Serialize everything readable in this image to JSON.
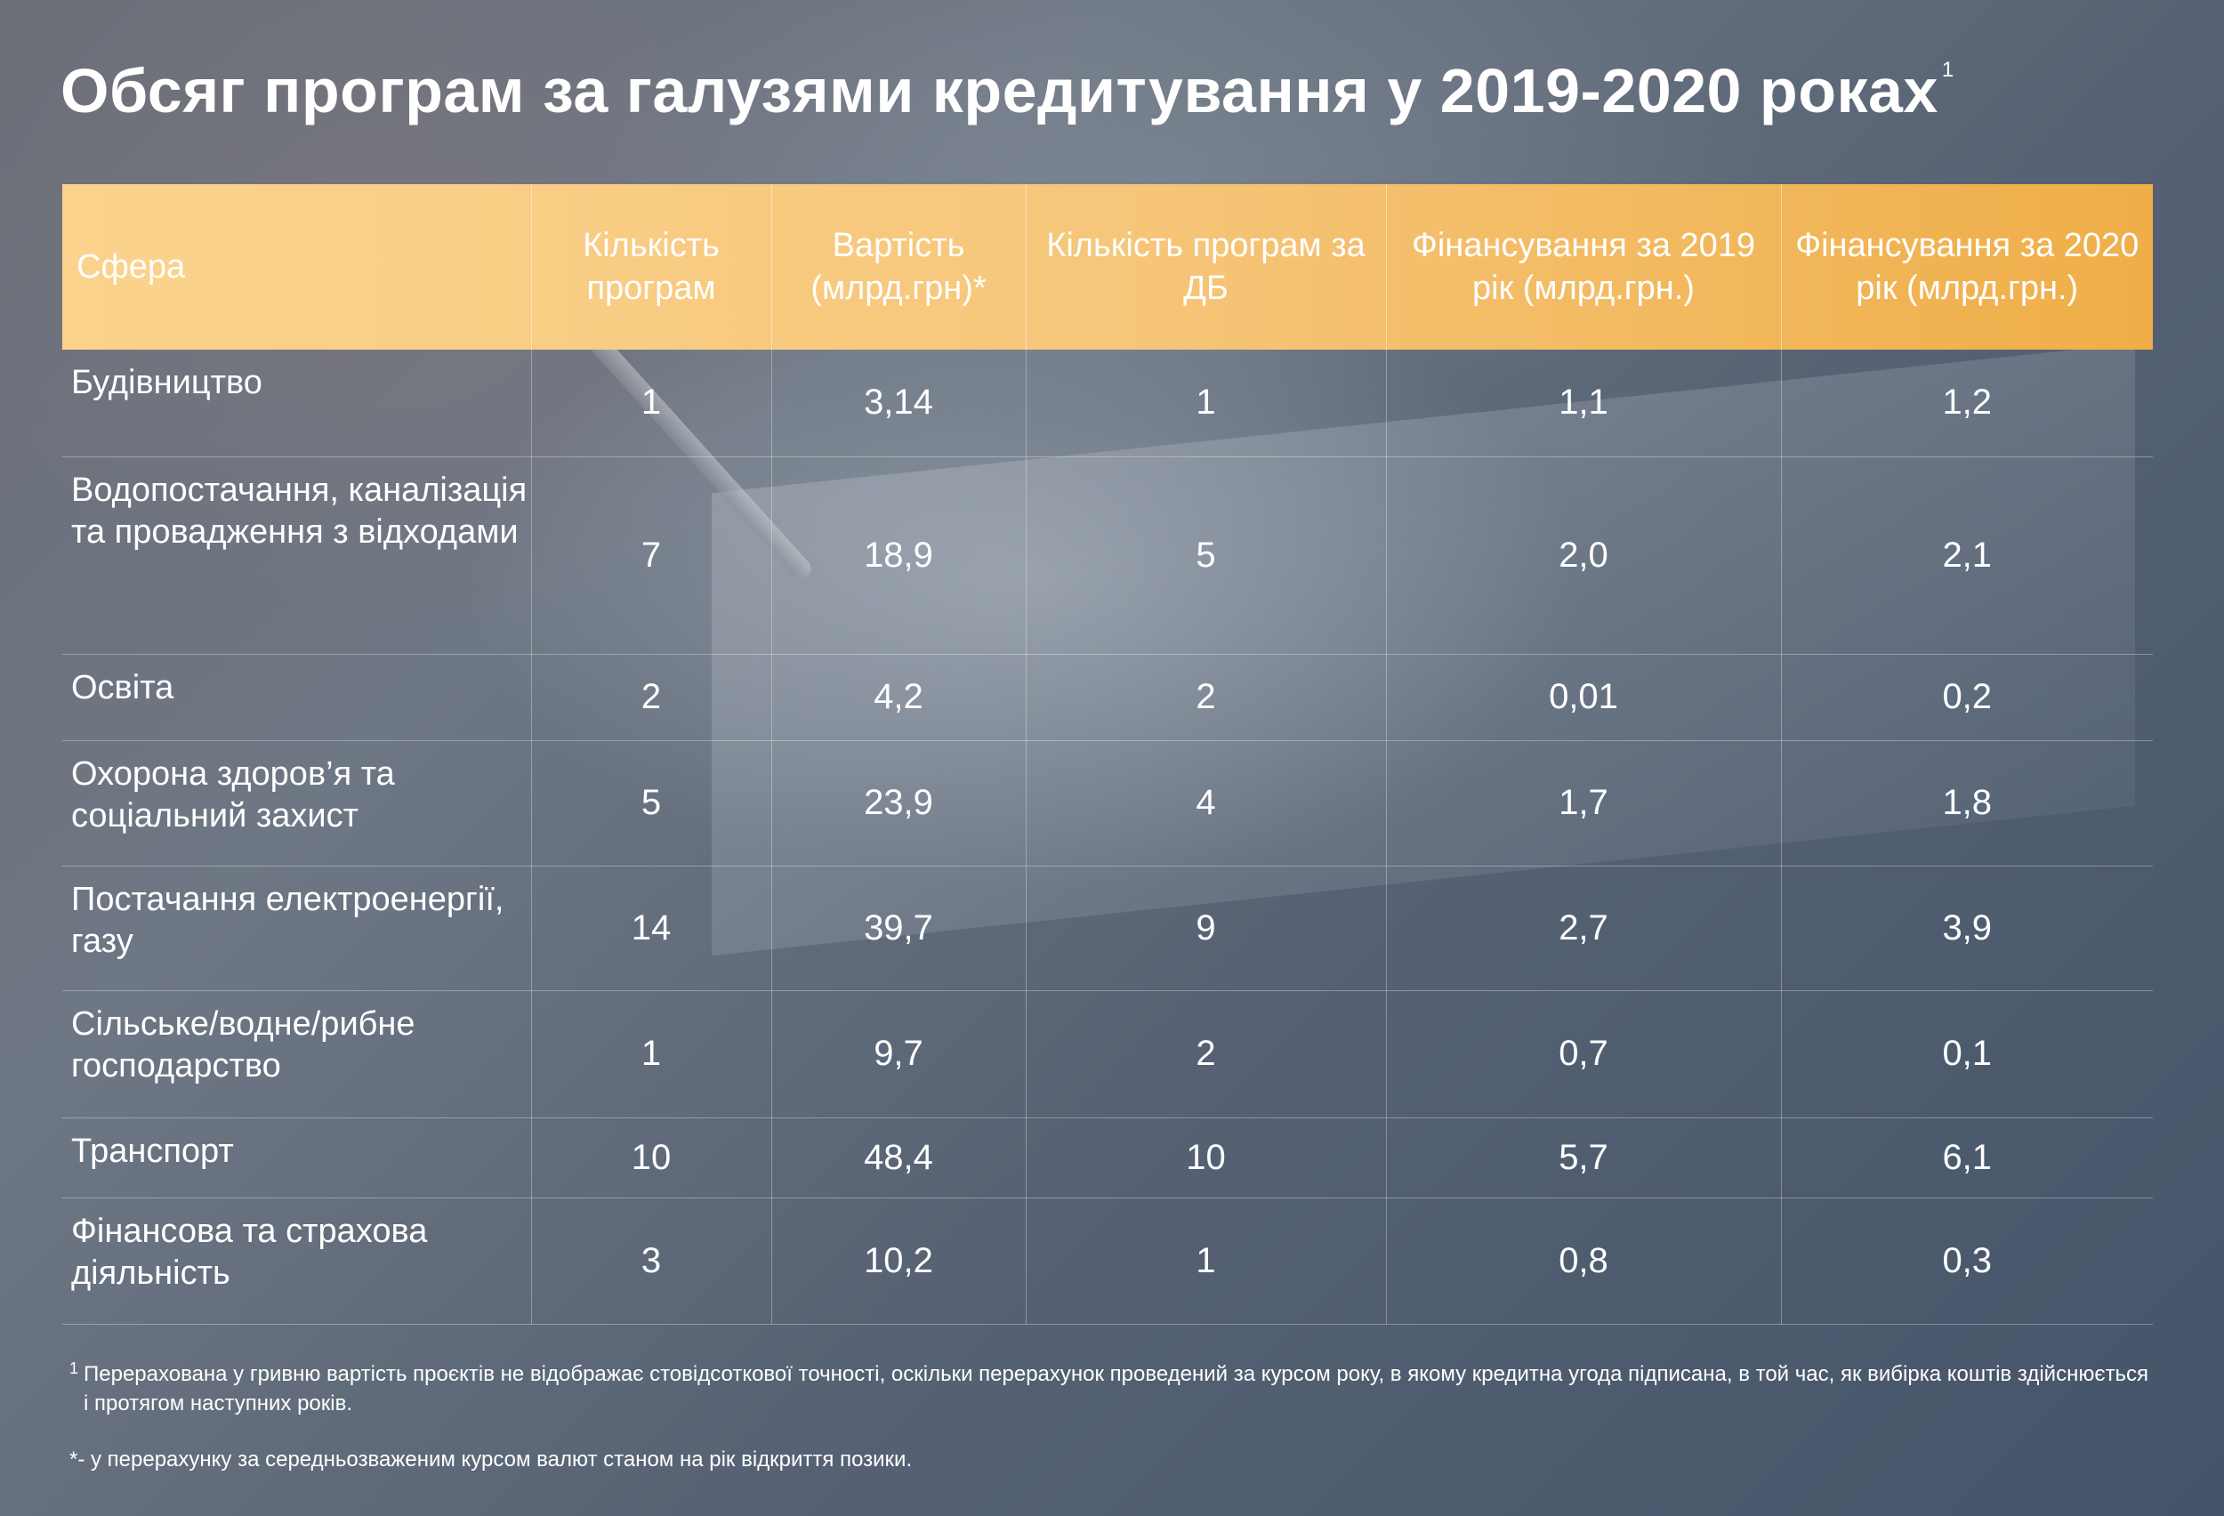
{
  "title": "Обсяг програм за галузями кредитування у 2019-2020 роках",
  "title_footnote_mark": "1",
  "table": {
    "headers": [
      "Сфера",
      "Кількість програм",
      "Вартість (млрд.грн)*",
      "Кількість програм за ДБ",
      "Фінансування за 2019 рік (млрд.грн.)",
      "Фінансування за 2020 рік (млрд.грн.)"
    ],
    "rows": [
      [
        "Будівництво",
        "1",
        "3,14",
        "1",
        "1,1",
        "1,2"
      ],
      [
        "Водопостачання, каналізація та провадження з відходами",
        "7",
        "18,9",
        "5",
        "2,0",
        "2,1"
      ],
      [
        "Освіта",
        "2",
        "4,2",
        "2",
        "0,01",
        "0,2"
      ],
      [
        "Охорона здоров’я та соціальний захист",
        "5",
        "23,9",
        "4",
        "1,7",
        "1,8"
      ],
      [
        "Постачання електроенергії, газу",
        "14",
        "39,7",
        "9",
        "2,7",
        "3,9"
      ],
      [
        "Сільське/водне/рибне господарство",
        "1",
        "9,7",
        "2",
        "0,7",
        "0,1"
      ],
      [
        "Транспорт",
        "10",
        "48,4",
        "10",
        "5,7",
        "6,1"
      ],
      [
        "Фінансова та страхова діяльність",
        "3",
        "10,2",
        "1",
        "0,8",
        "0,3"
      ]
    ]
  },
  "footnotes": {
    "fn1_mark": "1",
    "fn1_text": "Перерахована у гривню вартість проєктів не відображає стовідсоткової точності, оскільки перерахунок проведений за курсом року, в якому кредитна угода підписана, в той час, як вибірка коштів здійснюється і протягом наступних років.",
    "fn2_text": "*- у перерахунку за середньозваженим курсом валют станом на рік відкриття позики."
  },
  "colors": {
    "header_gradient_start": "#fbd38d",
    "header_gradient_end": "#efae48",
    "background_dark": "#45546a"
  }
}
